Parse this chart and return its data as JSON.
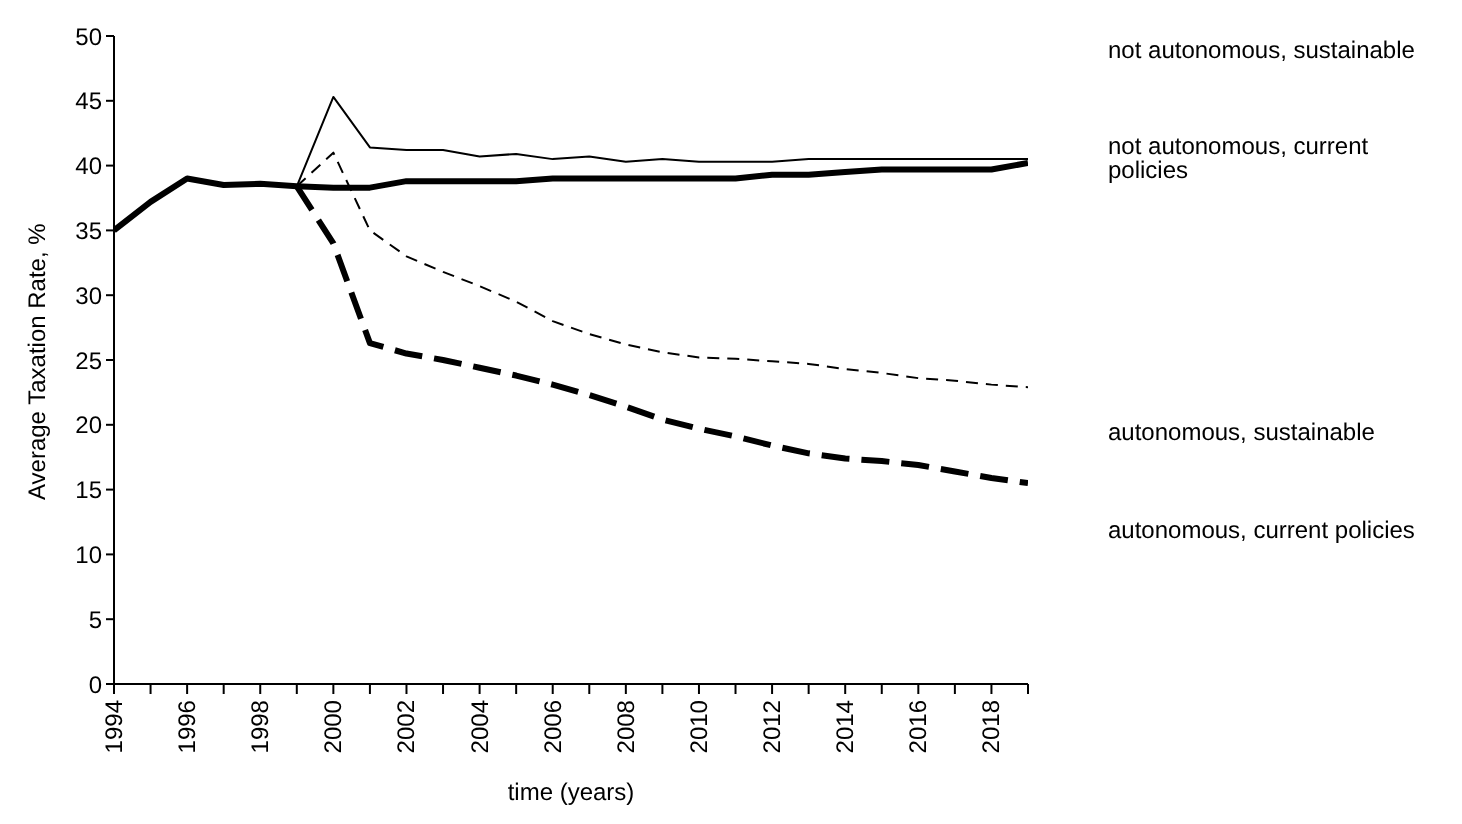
{
  "chart_data": {
    "type": "line",
    "xlabel": "time  (years)",
    "ylabel": "Average Taxation Rate, %",
    "x": [
      1994,
      1995,
      1996,
      1997,
      1998,
      1999,
      2000,
      2001,
      2002,
      2003,
      2004,
      2005,
      2006,
      2007,
      2008,
      2009,
      2010,
      2011,
      2012,
      2013,
      2014,
      2015,
      2016,
      2017,
      2018,
      2019
    ],
    "series": [
      {
        "name": "not autonomous, sustainable",
        "color": "#000000",
        "line_style": "solid",
        "values": [
          35,
          37.2,
          39,
          38.5,
          38.6,
          38.4,
          45.3,
          41.4,
          41.2,
          41.2,
          40.7,
          40.9,
          40.5,
          40.7,
          40.3,
          40.5,
          40.3,
          40.3,
          40.3,
          40.5,
          40.5,
          40.5,
          40.5,
          40.5,
          40.5,
          40.5
        ]
      },
      {
        "name": "not autonomous, current policies",
        "color": "#000000",
        "line_style": "solid",
        "values": [
          35,
          37.2,
          39,
          38.5,
          38.6,
          38.4,
          38.3,
          38.3,
          38.8,
          38.8,
          38.8,
          38.8,
          39,
          39,
          39,
          39,
          39,
          39,
          39.3,
          39.3,
          39.5,
          39.7,
          39.7,
          39.7,
          39.7,
          40.2
        ]
      },
      {
        "name": "autonomous, sustainable",
        "color": "#000000",
        "line_style": "dashed",
        "values": [
          null,
          null,
          null,
          null,
          null,
          38.4,
          41,
          35,
          33,
          31.8,
          30.7,
          29.5,
          28,
          27,
          26.2,
          25.6,
          25.2,
          25.1,
          24.9,
          24.7,
          24.3,
          24,
          23.6,
          23.4,
          23.1,
          22.9
        ]
      },
      {
        "name": "autonomous, current policies",
        "color": "#000000",
        "line_style": "dashed",
        "values": [
          null,
          null,
          null,
          null,
          null,
          38.4,
          34,
          26.3,
          25.5,
          25,
          24.4,
          23.8,
          23.1,
          22.3,
          21.4,
          20.4,
          19.7,
          19.1,
          18.4,
          17.8,
          17.4,
          17.2,
          16.9,
          16.4,
          15.9,
          15.5
        ]
      }
    ],
    "xlim": [
      1994,
      2019
    ],
    "xticks": [
      1994,
      {
        "value": 1995,
        "label": null
      },
      1996,
      {
        "value": 1997,
        "label": null
      },
      1998,
      {
        "value": 1999,
        "label": null
      },
      2000,
      {
        "value": 2001,
        "label": null
      },
      2002,
      {
        "value": 2003,
        "label": null
      },
      2004,
      {
        "value": 2005,
        "label": null
      },
      2006,
      {
        "value": 2007,
        "label": null
      },
      2008,
      {
        "value": 2009,
        "label": null
      },
      2010,
      {
        "value": 2011,
        "label": null
      },
      2012,
      {
        "value": 2013,
        "label": null
      },
      2014,
      {
        "value": 2015,
        "label": null
      },
      2016,
      {
        "value": 2017,
        "label": null
      },
      2018,
      {
        "value": 2019,
        "label": null
      }
    ],
    "ylim": [
      0,
      50
    ],
    "yticks": [
      0,
      5,
      10,
      15,
      20,
      25,
      30,
      35,
      40,
      45,
      50
    ],
    "grid": false,
    "legend": false,
    "marker": "none"
  }
}
